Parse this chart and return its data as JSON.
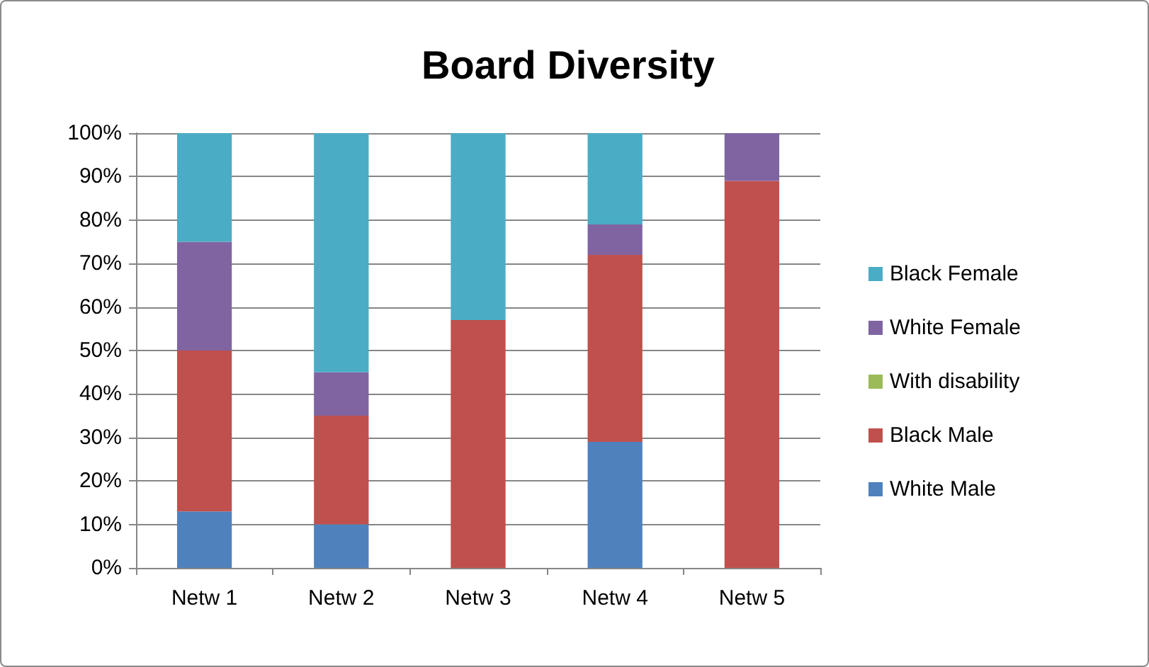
{
  "chart_data": {
    "type": "bar",
    "title": "Board Diversity",
    "stacked": true,
    "categories": [
      "Netw 1",
      "Netw 2",
      "Netw 3",
      "Netw 4",
      "Netw 5"
    ],
    "series": [
      {
        "name": "White Male",
        "color": "#4f81bd",
        "values": [
          13,
          10,
          0,
          29,
          0
        ]
      },
      {
        "name": "Black Male",
        "color": "#c0504d",
        "values": [
          37,
          25,
          57,
          43,
          89
        ]
      },
      {
        "name": "With disability",
        "color": "#9bbb59",
        "values": [
          0,
          0,
          0,
          0,
          0
        ]
      },
      {
        "name": "White Female",
        "color": "#8064a2",
        "values": [
          25,
          10,
          0,
          7,
          11
        ]
      },
      {
        "name": "Black Female",
        "color": "#4bacc6",
        "values": [
          25,
          55,
          43,
          21,
          0
        ]
      }
    ],
    "ylim": [
      0,
      100
    ],
    "yticks": [
      {
        "value": 0,
        "label": "0%"
      },
      {
        "value": 10,
        "label": "10%"
      },
      {
        "value": 20,
        "label": "20%"
      },
      {
        "value": 30,
        "label": "30%"
      },
      {
        "value": 40,
        "label": "40%"
      },
      {
        "value": 50,
        "label": "50%"
      },
      {
        "value": 60,
        "label": "60%"
      },
      {
        "value": 70,
        "label": "70%"
      },
      {
        "value": 80,
        "label": "80%"
      },
      {
        "value": 90,
        "label": "90%"
      },
      {
        "value": 100,
        "label": "100%"
      }
    ],
    "grid": "y",
    "legend": "right"
  }
}
